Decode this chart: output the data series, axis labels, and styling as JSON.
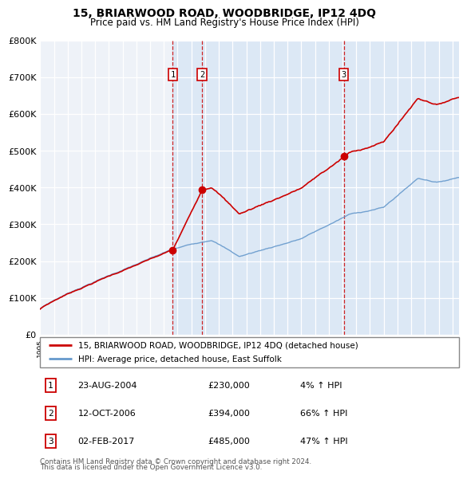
{
  "title": "15, BRIARWOOD ROAD, WOODBRIDGE, IP12 4DQ",
  "subtitle": "Price paid vs. HM Land Registry's House Price Index (HPI)",
  "ylim": [
    0,
    800000
  ],
  "yticks": [
    0,
    100000,
    200000,
    300000,
    400000,
    500000,
    600000,
    700000,
    800000
  ],
  "ytick_labels": [
    "£0",
    "£100K",
    "£200K",
    "£300K",
    "£400K",
    "£500K",
    "£600K",
    "£700K",
    "£800K"
  ],
  "xlim_start": 1995.0,
  "xlim_end": 2025.5,
  "sale_dates": [
    2004.644,
    2006.784,
    2017.087
  ],
  "sale_prices": [
    230000,
    394000,
    485000
  ],
  "sale_labels": [
    "1",
    "2",
    "3"
  ],
  "sale_info": [
    {
      "label": "1",
      "date": "23-AUG-2004",
      "price": "£230,000",
      "change": "4% ↑ HPI"
    },
    {
      "label": "2",
      "date": "12-OCT-2006",
      "price": "£394,000",
      "change": "66% ↑ HPI"
    },
    {
      "label": "3",
      "date": "02-FEB-2017",
      "price": "£485,000",
      "change": "47% ↑ HPI"
    }
  ],
  "line_color_property": "#cc0000",
  "line_color_hpi": "#6699cc",
  "shade_color": "#dce8f5",
  "legend_property": "15, BRIARWOOD ROAD, WOODBRIDGE, IP12 4DQ (detached house)",
  "legend_hpi": "HPI: Average price, detached house, East Suffolk",
  "footnote1": "Contains HM Land Registry data © Crown copyright and database right 2024.",
  "footnote2": "This data is licensed under the Open Government Licence v3.0.",
  "background_color": "#ffffff",
  "plot_bg_color": "#eef2f8"
}
